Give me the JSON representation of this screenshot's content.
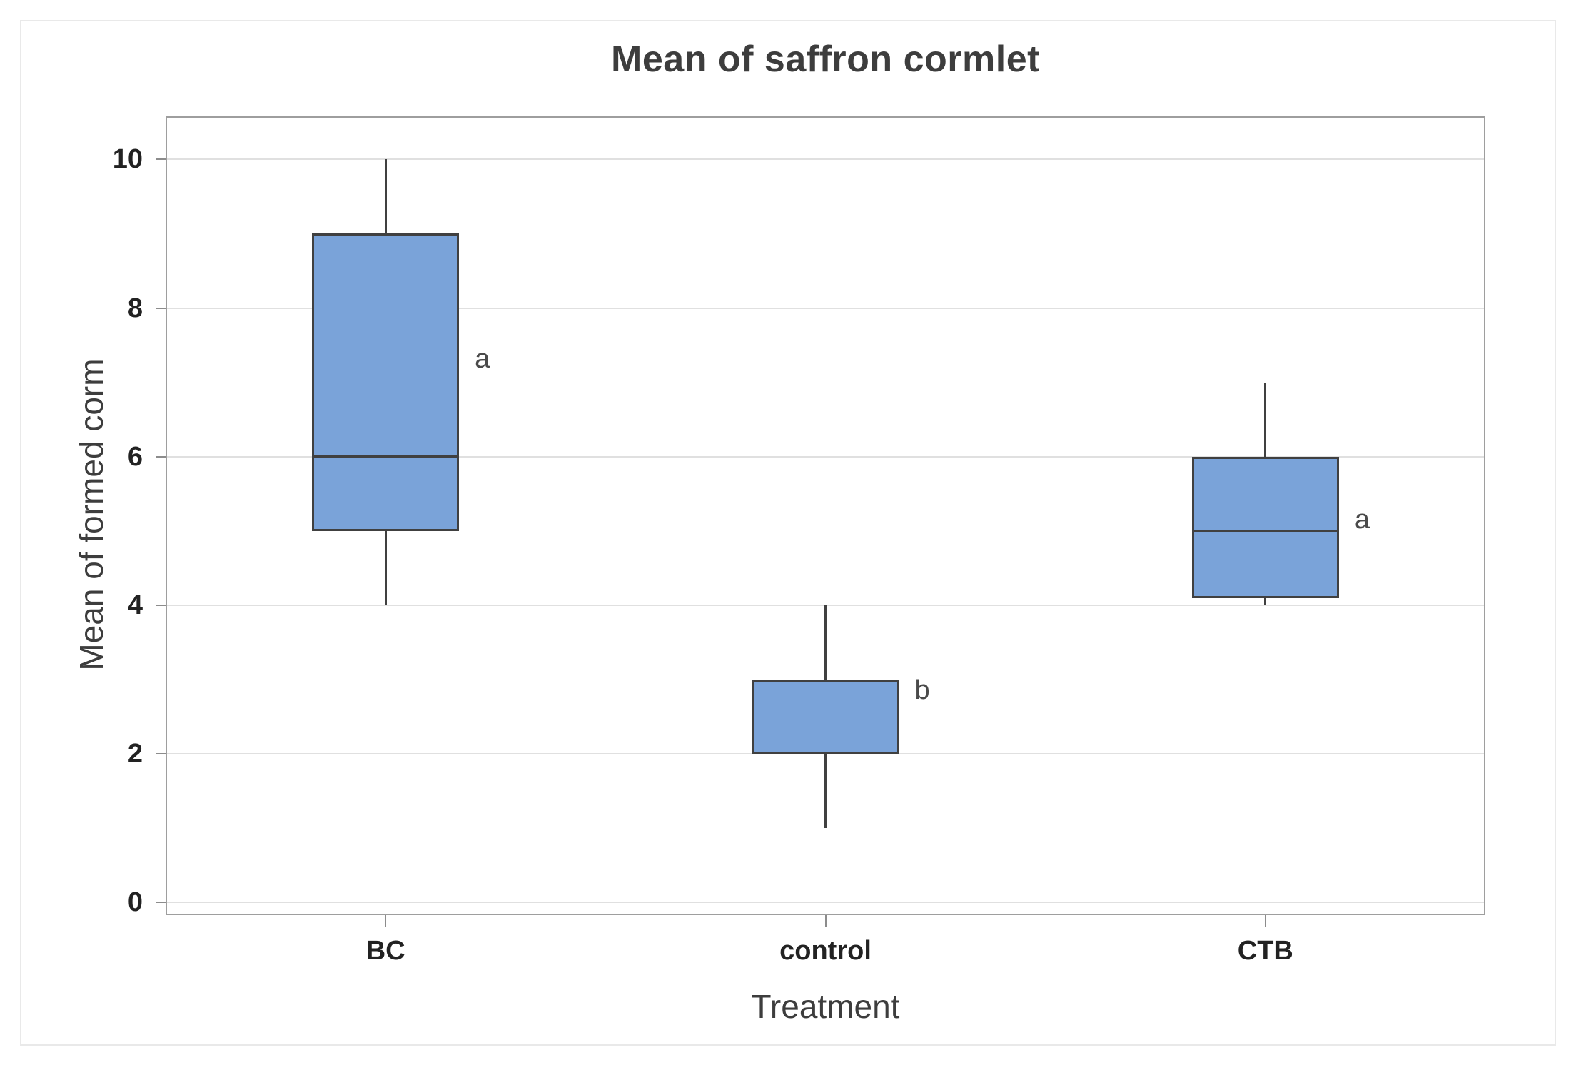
{
  "title": "Mean of saffron cormlet",
  "chart_data": {
    "type": "boxplot",
    "title": "Mean of saffron cormlet",
    "xlabel": "Treatment",
    "ylabel": "Mean of formed corm",
    "ylim": [
      -0.16,
      10.57
    ],
    "y_ticks": [
      0,
      2,
      4,
      6,
      8,
      10
    ],
    "grid": true,
    "categories": [
      "BC",
      "control",
      "CTB"
    ],
    "series": [
      {
        "category": "BC",
        "whisker_low": 4,
        "q1": 5,
        "median": 6,
        "q3": 9,
        "whisker_high": 10,
        "group_label": "a",
        "group_label_y": 7.31
      },
      {
        "category": "control",
        "whisker_low": 1,
        "q1": 2,
        "median": null,
        "q3": 3,
        "whisker_high": 4,
        "group_label": "b",
        "group_label_y": 2.86
      },
      {
        "category": "CTB",
        "whisker_low": 4,
        "q1": 4.1,
        "median": 5,
        "q3": 6,
        "whisker_high": 7,
        "group_label": "a",
        "group_label_y": 5.15
      }
    ],
    "colors": {
      "box_fill": "#7aa3d9",
      "box_border": "#404040",
      "gridline": "#e0e0e0",
      "frame": "#9e9e9e",
      "tick": "#8c8c8c",
      "tick_text": "#222222",
      "axis_text": "#3d3d3d",
      "letter_text": "#4a4a4a"
    }
  }
}
